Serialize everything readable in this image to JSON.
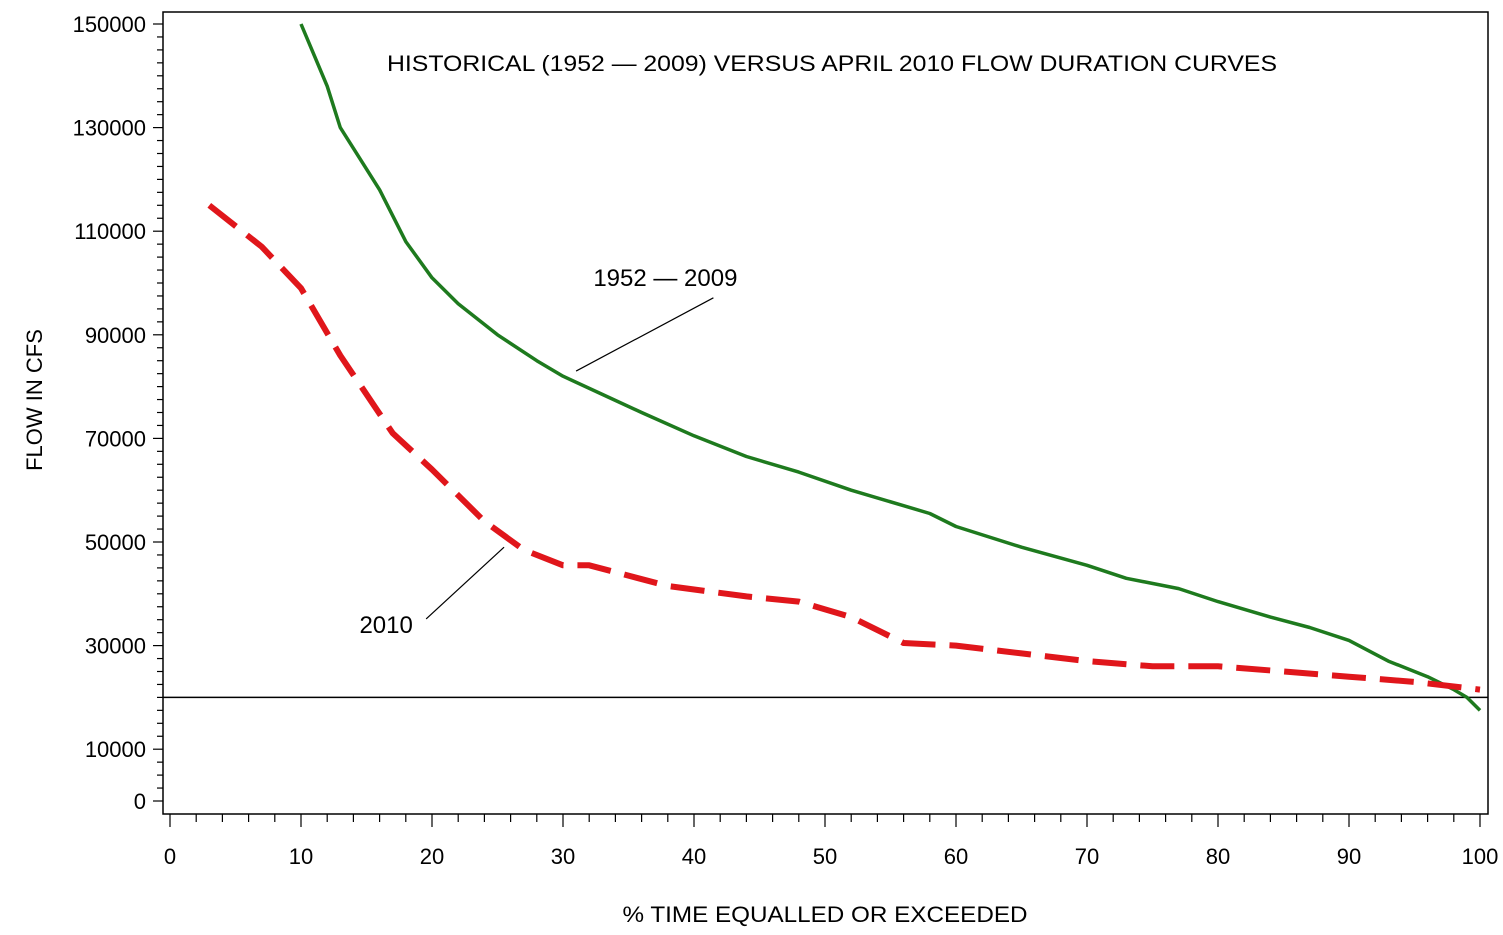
{
  "chart_data": {
    "type": "line",
    "title": "HISTORICAL (1952 — 2009) VERSUS APRIL 2010 FLOW DURATION CURVES",
    "xlabel": "% TIME EQUALLED OR EXCEEDED",
    "ylabel": "FLOW IN CFS",
    "xlim": [
      0,
      100
    ],
    "ylim": [
      0,
      150000
    ],
    "x_ticks": [
      0,
      10,
      20,
      30,
      40,
      50,
      60,
      70,
      80,
      90,
      100
    ],
    "x_tick_labels": [
      "0",
      "10",
      "20",
      "30",
      "40",
      "50",
      "60",
      "70",
      "80",
      "90",
      "100"
    ],
    "y_ticks": [
      0,
      10000,
      30000,
      50000,
      70000,
      90000,
      110000,
      130000,
      150000
    ],
    "y_tick_labels": [
      "0",
      "10000",
      "30000",
      "50000",
      "70000",
      "90000",
      "110000",
      "130000",
      "150000"
    ],
    "grid": false,
    "legend": "none",
    "series": [
      {
        "color": "#1e7a1e",
        "style": "solid",
        "x": [
          10,
          11,
          12,
          13,
          14,
          16,
          17,
          18,
          20,
          22,
          25,
          28,
          30,
          33,
          36,
          40,
          44,
          48,
          52,
          56,
          58,
          60,
          65,
          70,
          73,
          77,
          80,
          84,
          87,
          90,
          93,
          96,
          98,
          99,
          100
        ],
        "y": [
          150000,
          144000,
          138000,
          130000,
          126000,
          118000,
          113000,
          108000,
          101000,
          96000,
          90000,
          85000,
          82000,
          78500,
          75000,
          70500,
          66500,
          63500,
          60000,
          57000,
          55500,
          53000,
          49000,
          45500,
          43000,
          41000,
          38500,
          35500,
          33500,
          31000,
          27000,
          24000,
          21500,
          20000,
          17500
        ]
      },
      {
        "color": "#e0161b",
        "style": "dashed",
        "x": [
          3,
          7,
          10,
          13,
          17,
          20,
          24,
          27,
          30,
          32,
          38,
          44,
          48,
          52,
          56,
          60,
          65,
          70,
          75,
          80,
          85,
          90,
          95,
          100
        ],
        "y": [
          115000,
          107000,
          99000,
          86000,
          71000,
          64000,
          54000,
          48500,
          45500,
          45500,
          41500,
          39500,
          38500,
          35500,
          30500,
          30000,
          28500,
          27000,
          26000,
          26000,
          25000,
          24000,
          23000,
          21500
        ]
      }
    ],
    "reference_line": {
      "y": 20000,
      "color": "#000000"
    },
    "annotations": [
      {
        "text": "1952 — 2009",
        "target_x": 31,
        "target_y": 83000,
        "label_x": 34,
        "label_y": 101000
      },
      {
        "text": "2010",
        "target_x": 25.5,
        "target_y": 49000,
        "label_x": 16.5,
        "label_y": 34000
      }
    ]
  }
}
